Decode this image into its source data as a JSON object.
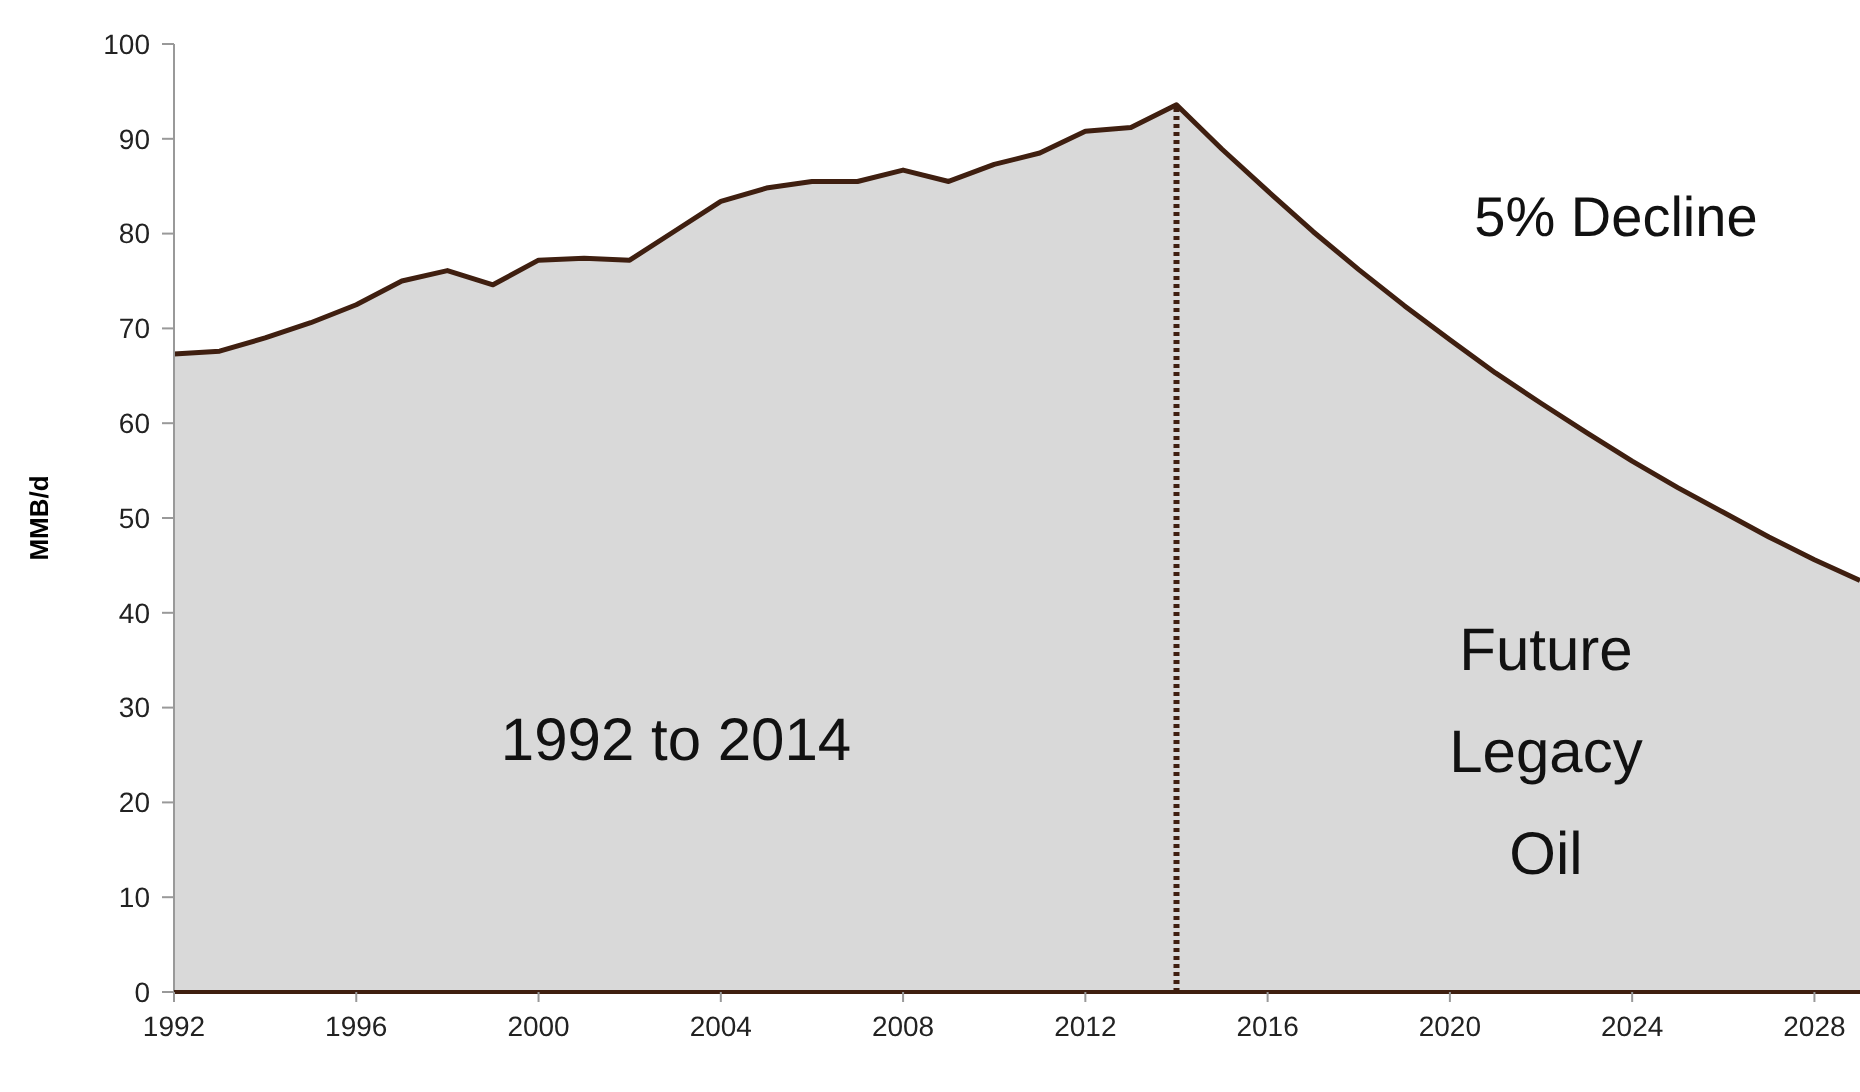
{
  "chart_data": {
    "type": "area",
    "ylabel": "MMB/d",
    "x": [
      1992,
      1993,
      1994,
      1995,
      1996,
      1997,
      1998,
      1999,
      2000,
      2001,
      2002,
      2003,
      2004,
      2005,
      2006,
      2007,
      2008,
      2009,
      2010,
      2011,
      2012,
      2013,
      2014,
      2015,
      2016,
      2017,
      2018,
      2019,
      2020,
      2021,
      2022,
      2023,
      2024,
      2025,
      2026,
      2027,
      2028,
      2029
    ],
    "series": [
      {
        "color": "#3f1f10",
        "values": [
          67.3,
          67.6,
          69,
          70.6,
          72.5,
          75,
          76.1,
          74.6,
          77.2,
          77.4,
          77.2,
          80.3,
          83.4,
          84.8,
          85.5,
          85.5,
          86.7,
          85.5,
          87.3,
          88.5,
          90.8,
          91.2,
          93.6,
          88.9,
          84.5,
          80.2,
          76.2,
          72.4,
          68.8,
          65.3,
          62.1,
          59,
          56,
          53.2,
          50.6,
          48,
          45.6,
          43.4
        ]
      }
    ],
    "xlim": [
      1992,
      2029
    ],
    "xticks": [
      1992,
      1996,
      2000,
      2004,
      2008,
      2012,
      2016,
      2020,
      2024,
      2028
    ],
    "ylim": [
      0,
      100
    ],
    "yticks": [
      0,
      10,
      20,
      30,
      40,
      50,
      60,
      70,
      80,
      90,
      100
    ],
    "ref_lines": [
      {
        "axis": "x",
        "value": 2014,
        "color": "#3f1f10",
        "line_style": "dotted"
      }
    ],
    "annotations": [
      "5% Decline",
      "1992 to 2014",
      "Future Legacy Oil"
    ],
    "grid": false
  }
}
